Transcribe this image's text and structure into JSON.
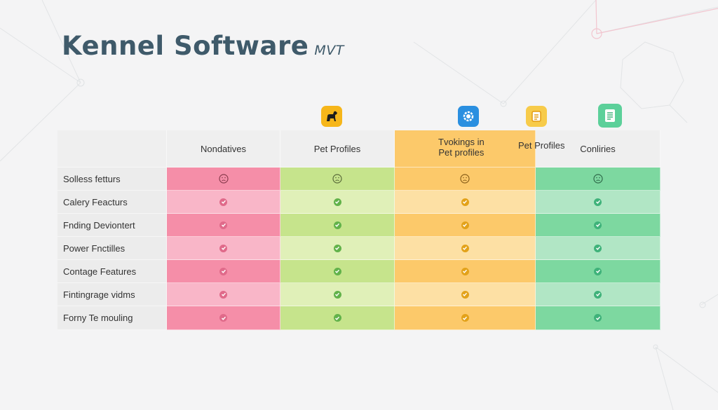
{
  "page": {
    "title": "Kennel Software",
    "title_suffix": "MVT"
  },
  "colors": {
    "pink_dark": "#f58ea8",
    "pink_light": "#f9b6c8",
    "green_dark": "#c6e48c",
    "green_light": "#e0f0b8",
    "orange_dark": "#fcc96a",
    "orange_light": "#fde0a4",
    "mint_dark": "#7dd8a0",
    "mint_light": "#b1e6c5",
    "header_bg": "#efefef",
    "label_bg": "#ececec"
  },
  "table": {
    "headers": [
      "Nondatives",
      "Pet Profiles",
      "Tvokings in\nPet profiles",
      "Conliries"
    ],
    "header_extra": "Pet Profiles",
    "column_icons": [
      "dog-icon",
      "gear-icon",
      "note-icon",
      "document-icon"
    ],
    "rows": [
      {
        "label": "Solless fetturs",
        "marker": "face"
      },
      {
        "label": "Calery Feacturs",
        "marker": "check"
      },
      {
        "label": "Fnding Deviontert",
        "marker": "check"
      },
      {
        "label": "Power Fnctilles",
        "marker": "check"
      },
      {
        "label": "Contage Features",
        "marker": "check"
      },
      {
        "label": "Fintingrage vidms",
        "marker": "check"
      },
      {
        "label": "Forny Te mouling",
        "marker": "check"
      }
    ]
  }
}
